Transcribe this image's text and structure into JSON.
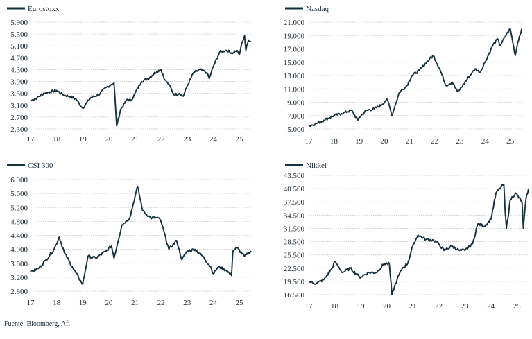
{
  "line_color": "#16313c",
  "grid_color": "#c8c8c8",
  "source": "Fuente: Bloomberg, Afi",
  "chart_data": [
    {
      "type": "line",
      "title": "",
      "series": [
        {
          "name": "Eurostoxx",
          "x": [
            2017.0,
            2017.25,
            2017.5,
            2017.75,
            2018.0,
            2018.25,
            2018.5,
            2018.75,
            2018.95,
            2019.0,
            2019.3,
            2019.6,
            2019.9,
            2020.1,
            2020.2,
            2020.3,
            2020.45,
            2020.7,
            2020.85,
            2021.0,
            2021.25,
            2021.5,
            2021.85,
            2022.0,
            2022.15,
            2022.3,
            2022.5,
            2022.7,
            2022.85,
            2023.0,
            2023.25,
            2023.5,
            2023.75,
            2023.85,
            2024.0,
            2024.25,
            2024.5,
            2024.75,
            2024.9,
            2025.0,
            2025.1,
            2025.2,
            2025.25,
            2025.35,
            2025.45
          ],
          "y": [
            3250,
            3350,
            3500,
            3550,
            3600,
            3450,
            3400,
            3300,
            3050,
            3000,
            3350,
            3450,
            3700,
            3800,
            3850,
            2400,
            2950,
            3300,
            3250,
            3500,
            3900,
            4000,
            4250,
            4300,
            3950,
            3800,
            3450,
            3500,
            3400,
            3750,
            4200,
            4300,
            4200,
            4000,
            4400,
            4900,
            4950,
            4850,
            4950,
            4800,
            5200,
            5450,
            4950,
            5300,
            5250
          ]
        }
      ],
      "categories": [
        "17",
        "18",
        "19",
        "20",
        "21",
        "22",
        "23",
        "24",
        "25"
      ],
      "ylim": [
        2300,
        5900
      ],
      "yticks": [
        "5.900",
        "5.500",
        "5.100",
        "4.700",
        "4.300",
        "3.900",
        "3.500",
        "3.100",
        "2.700",
        "2.300"
      ]
    },
    {
      "type": "line",
      "title": "",
      "series": [
        {
          "name": "Nasdaq",
          "x": [
            2017.0,
            2017.3,
            2017.6,
            2018.0,
            2018.3,
            2018.7,
            2018.95,
            2019.0,
            2019.3,
            2019.6,
            2019.9,
            2020.1,
            2020.2,
            2020.3,
            2020.6,
            2020.9,
            2021.1,
            2021.4,
            2021.8,
            2021.95,
            2022.2,
            2022.45,
            2022.7,
            2022.9,
            2023.0,
            2023.3,
            2023.6,
            2023.8,
            2024.0,
            2024.3,
            2024.5,
            2024.6,
            2024.9,
            2025.0,
            2025.2,
            2025.3,
            2025.45
          ],
          "y": [
            5400,
            5800,
            6300,
            7000,
            7300,
            7800,
            6300,
            6700,
            7800,
            8000,
            8600,
            9500,
            8500,
            7000,
            10500,
            11500,
            13000,
            13800,
            15500,
            16000,
            14000,
            11500,
            12000,
            10600,
            10900,
            12500,
            14000,
            13500,
            15000,
            17500,
            18500,
            17500,
            19500,
            20000,
            16000,
            18000,
            20000
          ]
        }
      ],
      "categories": [
        "17",
        "18",
        "19",
        "20",
        "21",
        "22",
        "23",
        "24",
        "25"
      ],
      "ylim": [
        5000,
        21000
      ],
      "yticks": [
        "21.000",
        "19.000",
        "17.000",
        "15.000",
        "13.000",
        "11.000",
        "9.000",
        "7.000",
        "5.000"
      ]
    },
    {
      "type": "line",
      "title": "",
      "series": [
        {
          "name": "CSI 300",
          "x": [
            2017.0,
            2017.3,
            2017.6,
            2017.9,
            2018.1,
            2018.3,
            2018.6,
            2018.95,
            2019.0,
            2019.2,
            2019.5,
            2019.9,
            2020.1,
            2020.2,
            2020.5,
            2020.8,
            2021.0,
            2021.1,
            2021.3,
            2021.6,
            2021.9,
            2022.0,
            2022.3,
            2022.6,
            2022.8,
            2023.0,
            2023.3,
            2023.6,
            2023.9,
            2024.0,
            2024.2,
            2024.5,
            2024.7,
            2024.75,
            2024.9,
            2025.2,
            2025.45
          ],
          "y": [
            3350,
            3450,
            3700,
            4000,
            4350,
            3900,
            3500,
            3050,
            3000,
            3800,
            3750,
            3950,
            4100,
            3750,
            4700,
            4900,
            5500,
            5800,
            5100,
            4900,
            4900,
            4800,
            4000,
            4250,
            3700,
            3950,
            4000,
            3800,
            3500,
            3300,
            3500,
            3400,
            3250,
            3950,
            4050,
            3800,
            3950
          ]
        }
      ],
      "categories": [
        "17",
        "18",
        "19",
        "20",
        "21",
        "22",
        "23",
        "24",
        "25"
      ],
      "ylim": [
        2800,
        6000
      ],
      "yticks": [
        "6.000",
        "5.600",
        "5.200",
        "4.800",
        "4.400",
        "4.000",
        "3.600",
        "3.200",
        "2.800"
      ]
    },
    {
      "type": "line",
      "title": "",
      "series": [
        {
          "name": "Nikkei",
          "x": [
            2017.0,
            2017.3,
            2017.6,
            2017.9,
            2018.0,
            2018.3,
            2018.6,
            2018.95,
            2019.0,
            2019.3,
            2019.6,
            2019.9,
            2020.1,
            2020.2,
            2020.4,
            2020.6,
            2020.8,
            2021.0,
            2021.2,
            2021.5,
            2021.8,
            2022.0,
            2022.2,
            2022.5,
            2022.8,
            2023.0,
            2023.3,
            2023.5,
            2023.75,
            2024.0,
            2024.2,
            2024.5,
            2024.55,
            2024.6,
            2024.75,
            2024.95,
            2025.2,
            2025.25,
            2025.35,
            2025.45
          ],
          "y": [
            19500,
            19000,
            20000,
            22500,
            24000,
            21500,
            22500,
            20500,
            20500,
            21500,
            21500,
            23500,
            23500,
            16500,
            20000,
            22500,
            23500,
            27500,
            30000,
            29000,
            28800,
            28000,
            26500,
            27500,
            26500,
            26500,
            28000,
            32500,
            32000,
            33500,
            39500,
            41500,
            35500,
            31500,
            38000,
            39500,
            37500,
            31500,
            38000,
            40500
          ]
        }
      ],
      "categories": [
        "17",
        "18",
        "19",
        "20",
        "21",
        "22",
        "23",
        "24",
        "25"
      ],
      "ylim": [
        16500,
        43500
      ],
      "yticks": [
        "43.500",
        "40.500",
        "37.500",
        "34.500",
        "31.500",
        "28.500",
        "25.500",
        "22.500",
        "19.500",
        "16.500"
      ]
    }
  ]
}
